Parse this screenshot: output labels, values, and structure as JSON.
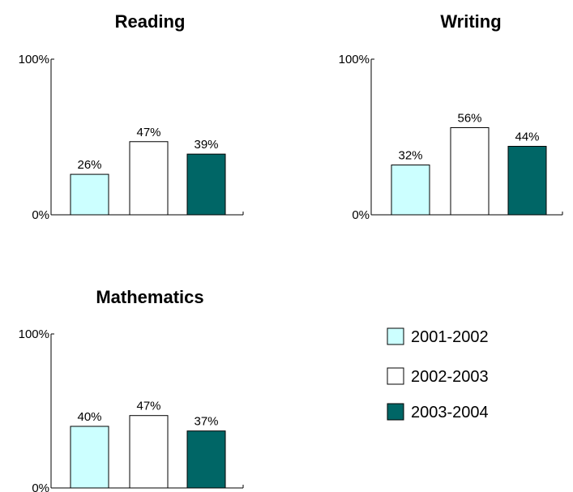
{
  "colors": {
    "2001-2002": "#ccffff",
    "2002-2003": "#ffffff",
    "2003-2004": "#006666",
    "axis": "#000000"
  },
  "legend": {
    "placement": "right",
    "items": [
      {
        "label": "2001-2002",
        "color": "#ccffff"
      },
      {
        "label": "2002-2003",
        "color": "#ffffff"
      },
      {
        "label": "2003-2004",
        "color": "#006666"
      }
    ]
  },
  "chart_data": [
    {
      "type": "bar",
      "title": "Reading",
      "categories": [
        "2001-2002",
        "2002-2003",
        "2003-2004"
      ],
      "values": [
        26,
        47,
        39
      ],
      "data_labels": [
        "26%",
        "47%",
        "39%"
      ],
      "ylim": [
        0,
        100
      ],
      "yticks": [
        "0%",
        "100%"
      ],
      "xlabel": "",
      "ylabel": "",
      "grid": false
    },
    {
      "type": "bar",
      "title": "Writing",
      "categories": [
        "2001-2002",
        "2002-2003",
        "2003-2004"
      ],
      "values": [
        32,
        56,
        44
      ],
      "data_labels": [
        "32%",
        "56%",
        "44%"
      ],
      "ylim": [
        0,
        100
      ],
      "yticks": [
        "0%",
        "100%"
      ],
      "xlabel": "",
      "ylabel": "",
      "grid": false
    },
    {
      "type": "bar",
      "title": "Mathematics",
      "categories": [
        "2001-2002",
        "2002-2003",
        "2003-2004"
      ],
      "values": [
        40,
        47,
        37
      ],
      "data_labels": [
        "40%",
        "47%",
        "37%"
      ],
      "ylim": [
        0,
        100
      ],
      "yticks": [
        "0%",
        "100%"
      ],
      "xlabel": "",
      "ylabel": "",
      "grid": false
    }
  ]
}
